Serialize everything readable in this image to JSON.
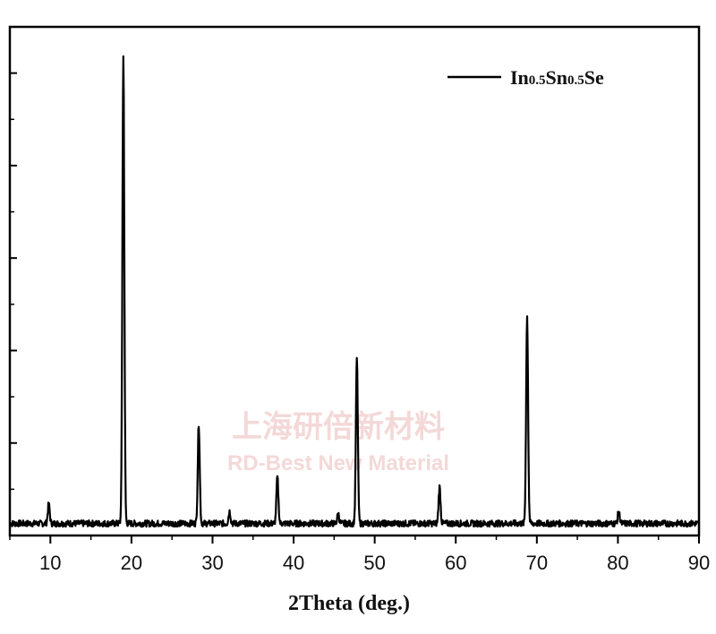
{
  "chart_data": {
    "type": "line",
    "xlabel": "2Theta (deg.)",
    "ylabel": "",
    "xlim": [
      5,
      90
    ],
    "ylim": [
      0,
      100
    ],
    "x_ticks": [
      10,
      20,
      30,
      40,
      50,
      60,
      70,
      80,
      90
    ],
    "y_tick_labels_shown": false,
    "grid": false,
    "legend_position": "top-right",
    "series": [
      {
        "legend_main_1": "In",
        "legend_sub_1": "0.5",
        "legend_main_2": "Sn",
        "legend_sub_2": "0.5",
        "legend_main_3": "Se",
        "color": "#000000",
        "peaks": [
          {
            "x": 9.8,
            "y": 4.0
          },
          {
            "x": 19.0,
            "y": 96.0
          },
          {
            "x": 28.3,
            "y": 20.5
          },
          {
            "x": 32.1,
            "y": 2.5
          },
          {
            "x": 38.0,
            "y": 9.5
          },
          {
            "x": 45.5,
            "y": 2.0
          },
          {
            "x": 47.8,
            "y": 34.0
          },
          {
            "x": 58.0,
            "y": 7.5
          },
          {
            "x": 68.8,
            "y": 42.5
          },
          {
            "x": 80.1,
            "y": 2.5
          }
        ]
      }
    ]
  },
  "watermark": {
    "line1": "上海研倍新材料",
    "line2": "RD-Best New Material",
    "color": "#f0c8c8"
  }
}
